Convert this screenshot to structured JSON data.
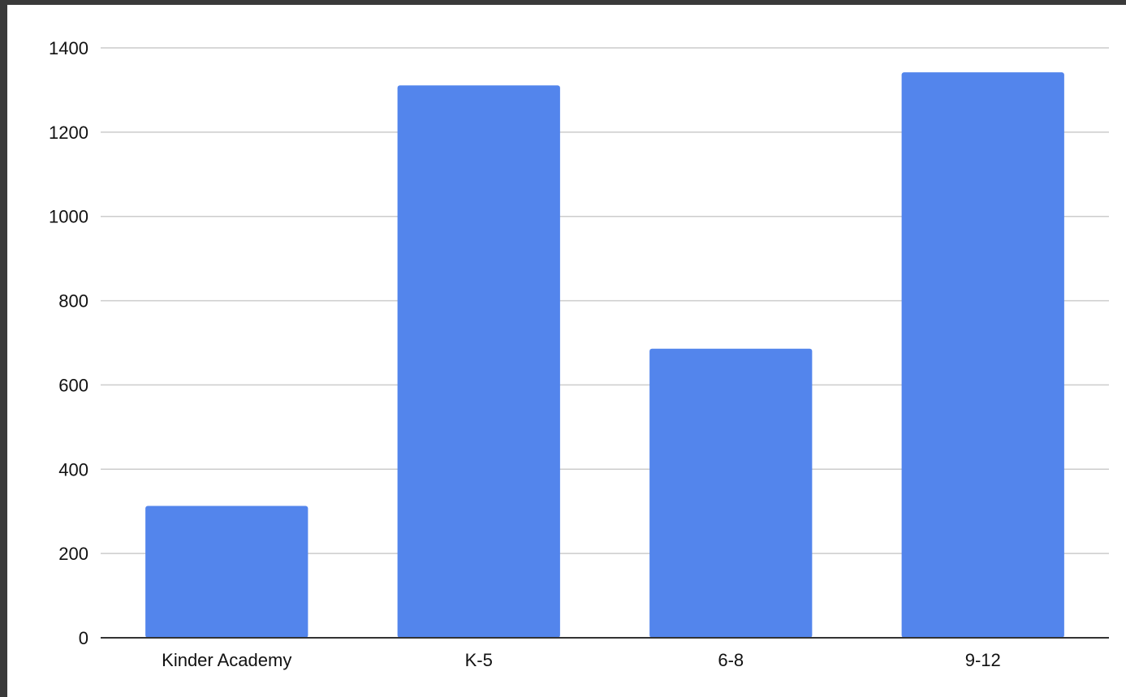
{
  "chart_data": {
    "type": "bar",
    "categories": [
      "Kinder Academy",
      "K-5",
      "6-8",
      "9-12"
    ],
    "values": [
      313,
      1311,
      686,
      1342
    ],
    "ylim": [
      0,
      1400
    ],
    "yticks": [
      0,
      200,
      400,
      600,
      800,
      1000,
      1200,
      1400
    ],
    "ytick_labels": [
      "0",
      "200",
      "400",
      "600",
      "800",
      "1000",
      "1200",
      "1400"
    ],
    "grid": true,
    "legend": "none",
    "colors": {
      "bar": "#5385ec",
      "grid": "#cccccc",
      "axis": "#333333",
      "background": "#ffffff",
      "frame": "#3a3a3a"
    }
  }
}
